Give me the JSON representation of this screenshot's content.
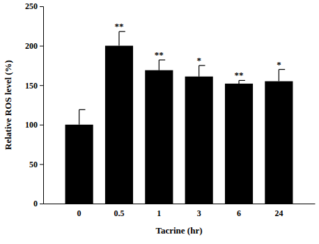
{
  "chart_data": {
    "type": "bar",
    "categories": [
      "0",
      "0.5",
      "1",
      "3",
      "6",
      "24"
    ],
    "values": [
      100,
      200,
      169,
      161,
      152,
      155
    ],
    "errors": [
      19,
      18,
      13,
      14,
      4,
      15
    ],
    "annotations": [
      null,
      "**",
      "**",
      "*",
      "**",
      "*"
    ],
    "color": "#000000",
    "xlabel": "Tacrine (hr)",
    "ylabel": "Relative ROS level (%)",
    "ylim": [
      0,
      250
    ],
    "yticks": [
      0,
      50,
      100,
      150,
      200,
      250
    ]
  }
}
